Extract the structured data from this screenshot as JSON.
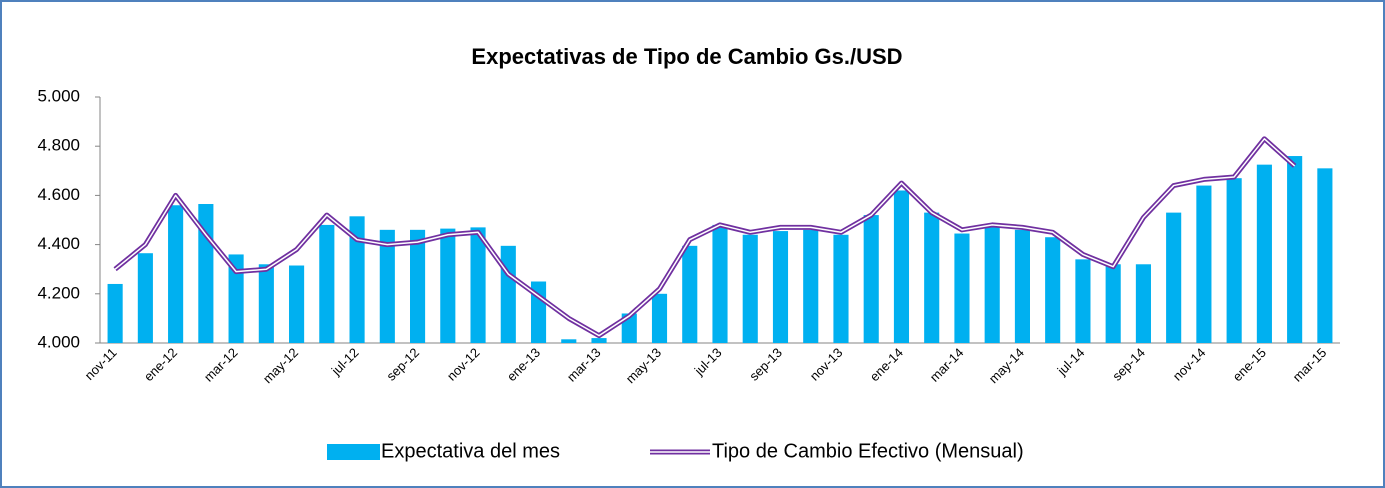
{
  "chart_data": {
    "type": "bar-line",
    "title": "Expectativas de Tipo de Cambio Gs./USD",
    "categories": [
      "nov-11",
      null,
      "ene-12",
      null,
      "mar-12",
      null,
      "may-12",
      null,
      "jul-12",
      null,
      "sep-12",
      null,
      "nov-12",
      null,
      "ene-13",
      null,
      "mar-13",
      null,
      "may-13",
      null,
      "jul-13",
      null,
      "sep-13",
      null,
      "nov-13",
      null,
      "ene-14",
      null,
      "mar-14",
      null,
      "may-14",
      null,
      "jul-14",
      null,
      "sep-14",
      null,
      "nov-14",
      null,
      "ene-15",
      null,
      "mar-15"
    ],
    "series": [
      {
        "name": "Expectativa del mes",
        "type": "bar",
        "color": "#00b0f0",
        "values": [
          4240,
          4365,
          4560,
          4565,
          4360,
          4320,
          4315,
          4480,
          4515,
          4460,
          4460,
          4465,
          4470,
          4395,
          4250,
          4015,
          4020,
          4120,
          4200,
          4395,
          4480,
          4440,
          4455,
          4460,
          4440,
          4520,
          4620,
          4530,
          4445,
          4470,
          4460,
          4430,
          4340,
          4320,
          4320,
          4530,
          4640,
          4670,
          4725,
          4760,
          4710
        ]
      },
      {
        "name": "Tipo de Cambio Efectivo (Mensual)",
        "type": "line",
        "color": "#7030a0",
        "values": [
          4300,
          4400,
          4600,
          4440,
          4290,
          4300,
          4380,
          4520,
          4420,
          4400,
          4410,
          4440,
          4450,
          4280,
          4190,
          4100,
          4030,
          4110,
          4220,
          4420,
          4480,
          4450,
          4470,
          4470,
          4450,
          4520,
          4650,
          4530,
          4460,
          4480,
          4470,
          4450,
          4360,
          4310,
          4510,
          4640,
          4665,
          4675,
          4830,
          4720,
          null
        ]
      }
    ],
    "ylim": [
      4000,
      5000
    ],
    "yticks": [
      {
        "value": 4000,
        "label": "4.000"
      },
      {
        "value": 4200,
        "label": "4.200"
      },
      {
        "value": 4400,
        "label": "4.400"
      },
      {
        "value": 4600,
        "label": "4.600"
      },
      {
        "value": 4800,
        "label": "4.800"
      },
      {
        "value": 5000,
        "label": "5.000"
      }
    ],
    "grid": false,
    "legend": "bottom"
  }
}
